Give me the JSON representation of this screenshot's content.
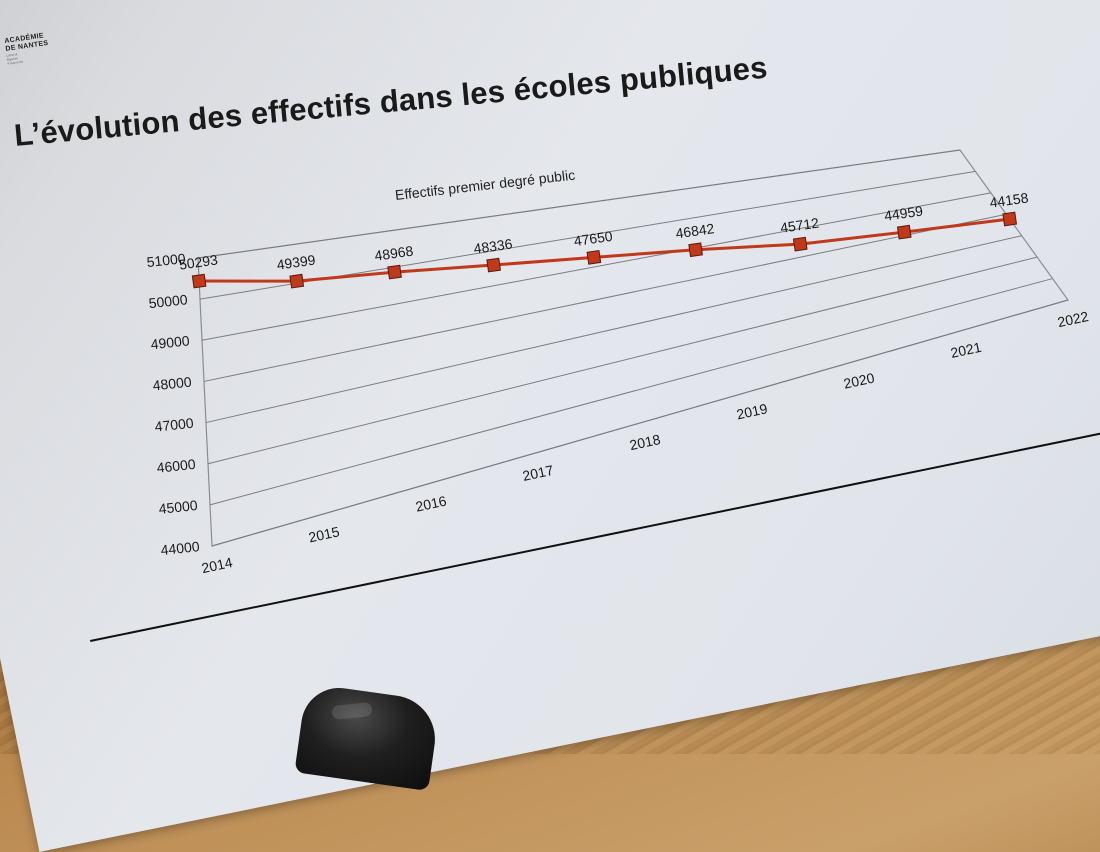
{
  "document": {
    "logo_lines": [
      "ACADÉMIE",
      "DE NANTES"
    ],
    "logo_sub": [
      "Liberté",
      "Égalité",
      "Fraternité"
    ],
    "title": "L’évolution des effectifs dans les écoles publiques"
  },
  "chart_data": {
    "type": "line",
    "title": "Effectifs premier degré public",
    "xlabel": "",
    "ylabel": "",
    "categories": [
      "2014",
      "2015",
      "2016",
      "2017",
      "2018",
      "2019",
      "2020",
      "2021",
      "2022"
    ],
    "series": [
      {
        "name": "Effectifs premier degré public",
        "values": [
          50293,
          49399,
          48968,
          48336,
          47650,
          46842,
          45712,
          44959,
          44158
        ],
        "color": "#c0391b",
        "marker": "square"
      }
    ],
    "data_labels": [
      "50293",
      "49399",
      "48968",
      "48336",
      "47650",
      "46842",
      "45712",
      "44959",
      "44158"
    ],
    "y_ticks": [
      "44000",
      "45000",
      "46000",
      "47000",
      "48000",
      "49000",
      "50000",
      "51000"
    ],
    "ylim": [
      44000,
      51000
    ],
    "grid": true,
    "legend": "none"
  },
  "colors": {
    "series": "#c0391b",
    "gridline": "#7a7d82",
    "text": "#1a1a1a",
    "paper": "#e2e6ec",
    "desk": "#b98b52"
  }
}
